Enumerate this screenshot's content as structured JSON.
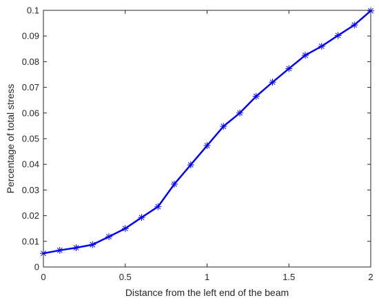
{
  "chart_data": {
    "type": "line",
    "xlabel": "Distance from the left end of the beam",
    "ylabel": "Percentage of total stress",
    "xlim": [
      0,
      2
    ],
    "ylim": [
      0,
      0.1
    ],
    "xticks": [
      "0",
      "0.5",
      "1",
      "1.5",
      "2"
    ],
    "yticks": [
      "0",
      "0.01",
      "0.02",
      "0.03",
      "0.04",
      "0.05",
      "0.06",
      "0.07",
      "0.08",
      "0.09",
      "0.1"
    ],
    "grid": false,
    "marker": "asterisk",
    "series": [
      {
        "color": "#0000ff",
        "x": [
          0,
          0.1,
          0.2,
          0.3,
          0.4,
          0.5,
          0.6,
          0.7,
          0.8,
          0.9,
          1.0,
          1.1,
          1.2,
          1.3,
          1.4,
          1.5,
          1.6,
          1.7,
          1.8,
          1.9,
          2.0
        ],
        "y": [
          0.0053,
          0.0065,
          0.0075,
          0.0087,
          0.0118,
          0.015,
          0.0193,
          0.0235,
          0.0323,
          0.0398,
          0.0473,
          0.0548,
          0.06,
          0.0665,
          0.072,
          0.0773,
          0.0825,
          0.086,
          0.0902,
          0.0943,
          0.0998
        ]
      }
    ]
  }
}
